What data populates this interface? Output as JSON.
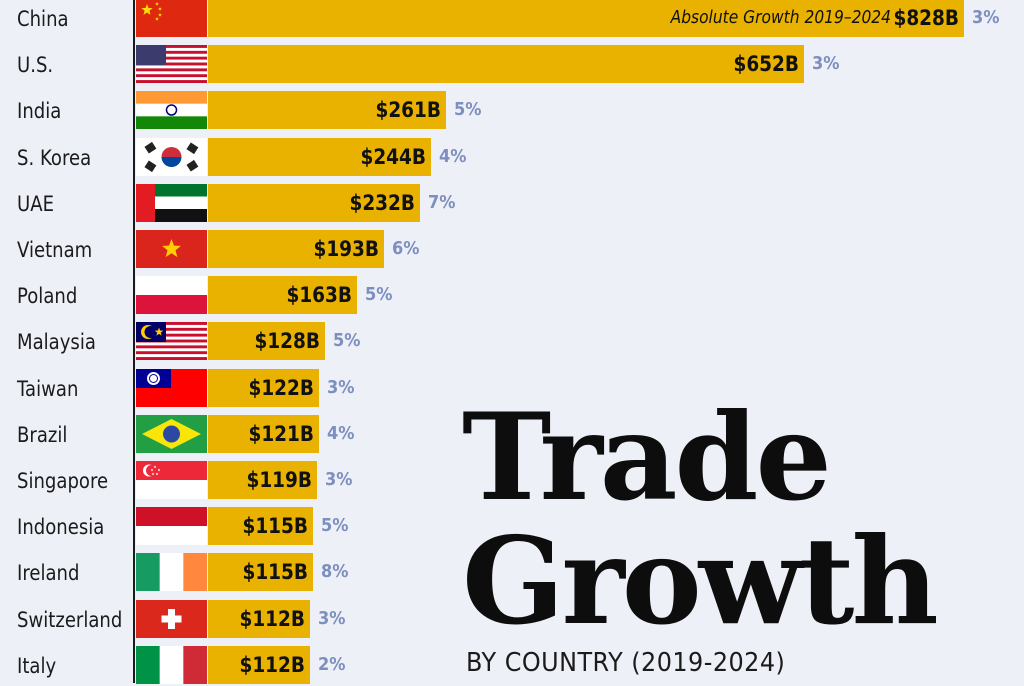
{
  "title_line1": "Trade",
  "title_line2": "Growth",
  "subtitle": "BY COUNTRY (2019-2024)",
  "colors": {
    "bar": "#e9b100",
    "percent_text": "#7d8fbf",
    "background": "#eef0f8"
  },
  "chart_data": {
    "type": "bar",
    "orientation": "horizontal",
    "series_label": "Absolute Growth 2019–2024",
    "categories": [
      "China",
      "U.S.",
      "India",
      "S. Korea",
      "UAE",
      "Vietnam",
      "Poland",
      "Malaysia",
      "Taiwan",
      "Brazil",
      "Singapore",
      "Indonesia",
      "Ireland",
      "Switzerland",
      "Italy"
    ],
    "values": [
      828,
      652,
      261,
      244,
      232,
      193,
      163,
      128,
      122,
      121,
      119,
      115,
      115,
      112,
      112
    ],
    "value_labels": [
      "$828B",
      "$652B",
      "$261B",
      "$244B",
      "$232B",
      "$193B",
      "$163B",
      "$128B",
      "$122B",
      "$121B",
      "$119B",
      "$115B",
      "$115B",
      "$112B",
      "$112B"
    ],
    "percent_labels": [
      "3%",
      "3%",
      "5%",
      "4%",
      "7%",
      "6%",
      "5%",
      "5%",
      "3%",
      "4%",
      "3%",
      "5%",
      "8%",
      "3%",
      "2%"
    ],
    "flags": [
      "china-flag-icon",
      "us-flag-icon",
      "india-flag-icon",
      "south-korea-flag-icon",
      "uae-flag-icon",
      "vietnam-flag-icon",
      "poland-flag-icon",
      "malaysia-flag-icon",
      "taiwan-flag-icon",
      "brazil-flag-icon",
      "singapore-flag-icon",
      "indonesia-flag-icon",
      "ireland-flag-icon",
      "switzerland-flag-icon",
      "italy-flag-icon"
    ],
    "unit": "$B",
    "grid": false,
    "legend": "none"
  }
}
